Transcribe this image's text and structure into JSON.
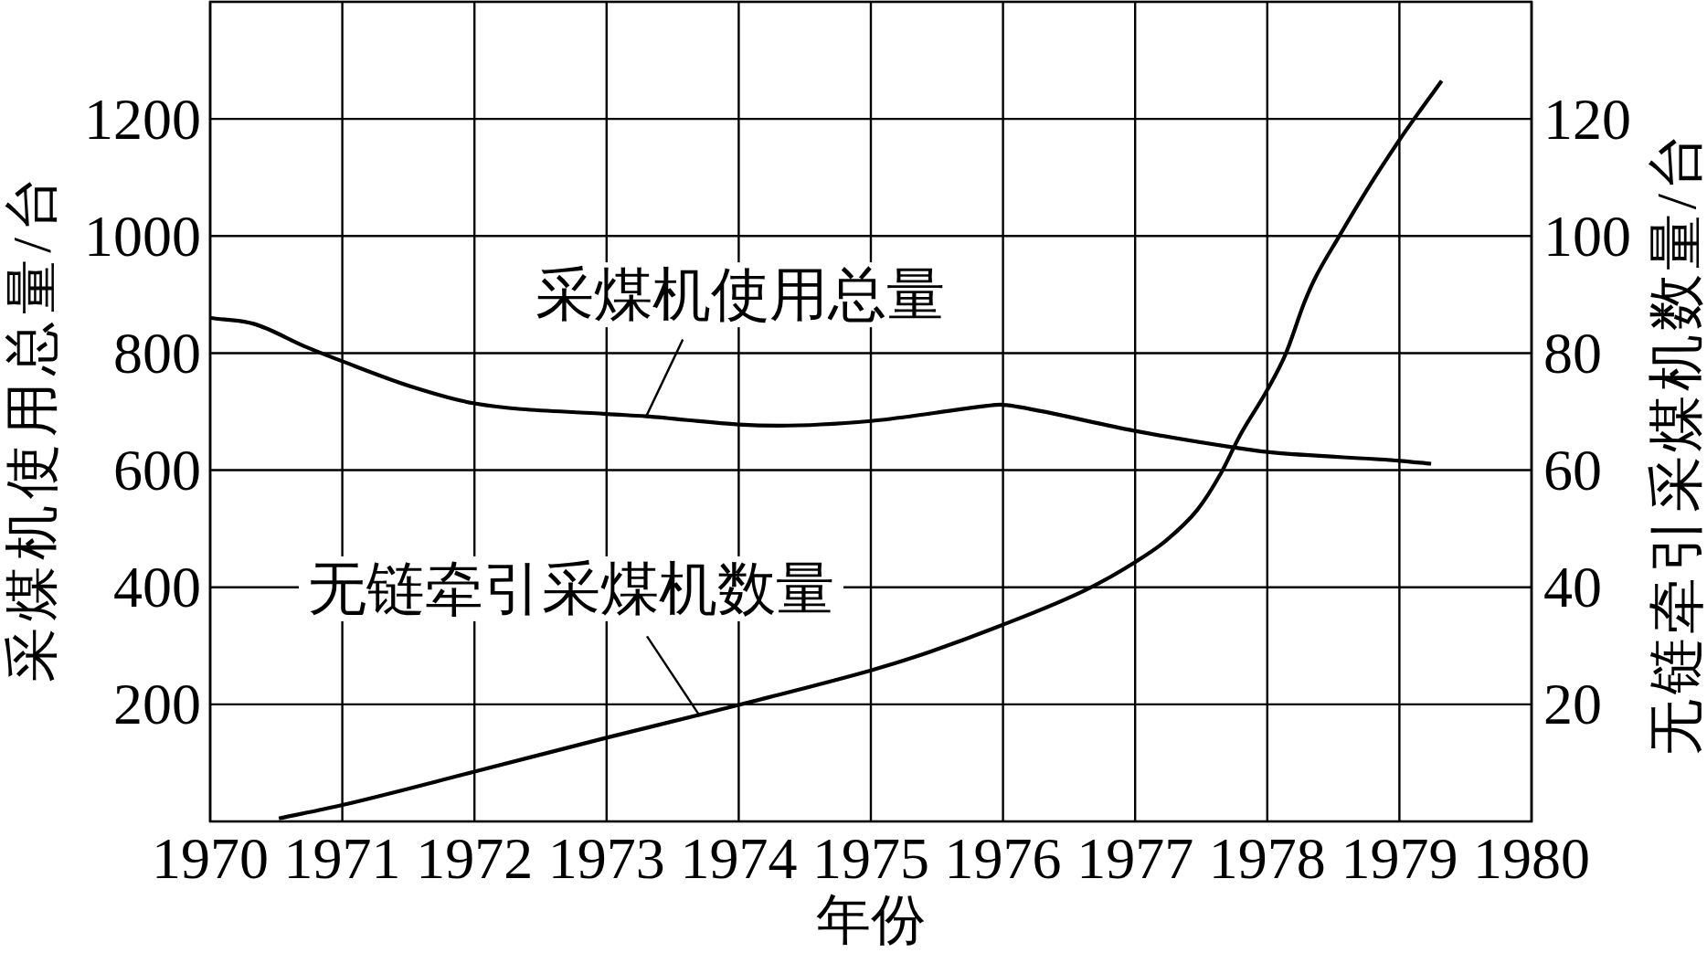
{
  "chart_data": {
    "type": "line",
    "xlabel": "年份",
    "ylabel": "采煤机使用总量/台",
    "y2label": "无链牵引采煤机数量/台",
    "xlim": [
      1970,
      1980
    ],
    "xticks": [
      1970,
      1971,
      1972,
      1973,
      1974,
      1975,
      1976,
      1977,
      1978,
      1979,
      1980
    ],
    "ylim": [
      0,
      1400
    ],
    "yticks": [
      200,
      400,
      600,
      800,
      1000,
      1200
    ],
    "y2lim": [
      0,
      140
    ],
    "y2ticks": [
      20,
      40,
      60,
      80,
      100,
      120
    ],
    "grid": true,
    "line_style": "solid",
    "series": [
      {
        "name": "采煤机使用总量",
        "color": "#000000",
        "x": [
          1970.0,
          1970.33,
          1970.72,
          1971.0,
          1971.52,
          1972.0,
          1973.0,
          1973.3,
          1974.0,
          1974.3,
          1975.0,
          1975.49,
          1975.88,
          1975.98,
          1976.12,
          1977.0,
          1977.71,
          1978.0,
          1979.0,
          1979.24
        ],
        "values": [
          860,
          850,
          811,
          786,
          743,
          714,
          696,
          692,
          678,
          676,
          684,
          698,
          710,
          712,
          708,
          667,
          640,
          631,
          616,
          611
        ]
      },
      {
        "name": "无链牵引采煤机数量",
        "color": "#000000",
        "axis": "y2",
        "x": [
          1970.52,
          1971.0,
          1972.0,
          1973.0,
          1973.7,
          1974.0,
          1975.0,
          1975.32,
          1976.0,
          1976.63,
          1977.0,
          1977.23,
          1977.47,
          1977.65,
          1977.79,
          1978.0,
          1978.14,
          1978.28,
          1978.36,
          1978.54,
          1978.78,
          1979.0,
          1979.14,
          1979.32
        ],
        "values": [
          0.5,
          2.8,
          8.5,
          14.3,
          18.2,
          19.9,
          25.8,
          28.0,
          33.6,
          39.6,
          44.3,
          47.9,
          53.2,
          59.5,
          65.8,
          73.7,
          79.9,
          88.6,
          92.7,
          99.8,
          108.8,
          116.4,
          120.9,
          126.5
        ]
      }
    ]
  }
}
